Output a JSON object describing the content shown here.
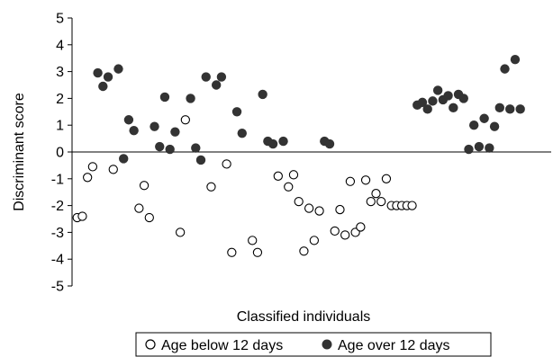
{
  "chart_data": {
    "type": "scatter",
    "title": "",
    "xlabel": "Classified individuals",
    "ylabel": "Discriminant score",
    "ylim": [
      -5,
      5
    ],
    "yticks": [
      5,
      4,
      3,
      2,
      1,
      0,
      -1,
      -2,
      -3,
      -4,
      -5
    ],
    "ytick_labels": [
      "5",
      "4",
      "3",
      "2",
      "1",
      "0",
      "-1",
      "-2",
      "-3",
      "-4",
      "-5"
    ],
    "xlim": [
      0,
      93
    ],
    "grid": false,
    "legend_position": "bottom",
    "series": [
      {
        "name": "Age below 12 days",
        "marker": "open-circle",
        "color": "#000000",
        "x": [
          1,
          2,
          3,
          4,
          8,
          13,
          14,
          15,
          21,
          22,
          27,
          30,
          31,
          35,
          36,
          40,
          42,
          43,
          44,
          45,
          46,
          47,
          48,
          51,
          52,
          53,
          54,
          55,
          56,
          57,
          58,
          59,
          60,
          61,
          62,
          63,
          64,
          65,
          66
        ],
        "y": [
          -2.45,
          -2.4,
          -0.95,
          -0.55,
          -0.65,
          -2.1,
          -1.25,
          -2.45,
          -3.0,
          1.2,
          -1.3,
          -0.45,
          -3.75,
          -3.3,
          -3.75,
          -0.9,
          -1.3,
          -0.85,
          -1.85,
          -3.7,
          -2.1,
          -3.3,
          -2.2,
          -2.95,
          -2.15,
          -3.1,
          -1.1,
          -3.0,
          -2.8,
          -1.05,
          -1.85,
          -1.55,
          -1.85,
          -1.0,
          -2.0,
          -2.0,
          -2.0,
          -2.0,
          -2.0
        ]
      },
      {
        "name": "Age over 12 days",
        "marker": "filled-circle",
        "color": "#333333",
        "x": [
          5,
          6,
          7,
          9,
          10,
          11,
          12,
          16,
          17,
          18,
          19,
          20,
          23,
          24,
          25,
          26,
          28,
          29,
          32,
          33,
          37,
          38,
          39,
          41,
          49,
          50,
          67,
          68,
          69,
          70,
          71,
          72,
          73,
          74,
          75,
          76,
          77,
          78,
          79,
          80,
          81,
          82,
          83,
          84,
          85,
          86,
          87
        ],
        "y": [
          2.95,
          2.45,
          2.8,
          3.1,
          -0.25,
          1.2,
          0.8,
          0.95,
          0.2,
          2.05,
          0.1,
          0.75,
          2.0,
          0.15,
          -0.3,
          2.8,
          2.5,
          2.8,
          1.5,
          0.7,
          2.15,
          0.4,
          0.3,
          0.4,
          0.4,
          0.3,
          1.75,
          1.85,
          1.6,
          1.9,
          2.3,
          1.95,
          2.1,
          1.65,
          2.15,
          2.0,
          0.1,
          1.0,
          0.2,
          1.25,
          0.15,
          0.95,
          1.65,
          3.1,
          1.6,
          3.45,
          1.6
        ]
      }
    ]
  }
}
